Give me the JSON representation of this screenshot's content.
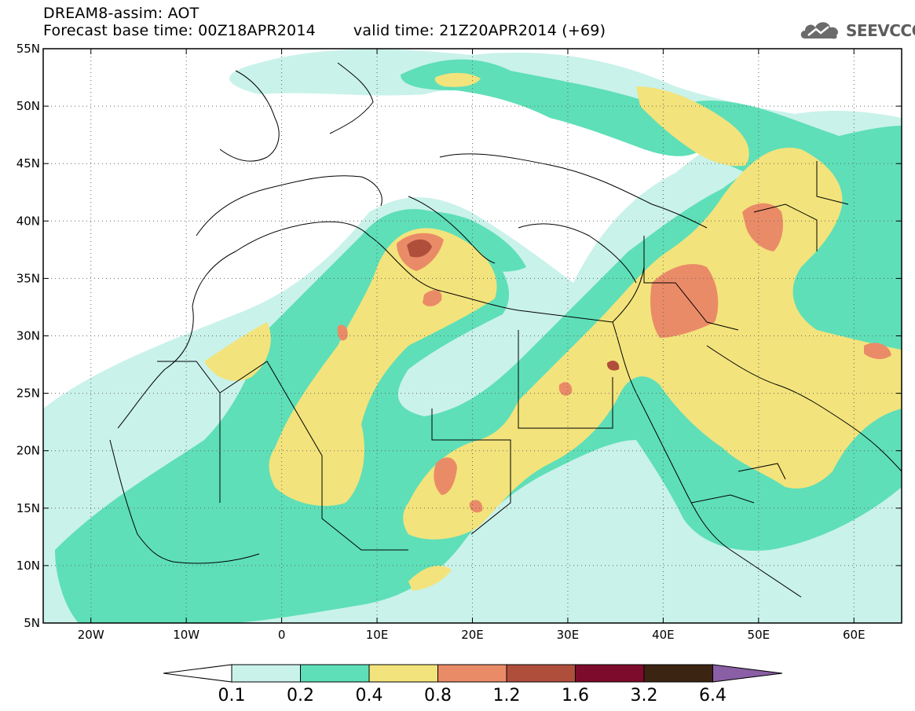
{
  "header": {
    "line1": "DREAM8-assim: AOT",
    "base_time": "Forecast base time: 00Z18APR2014",
    "valid_time": "valid time: 21Z20APR2014 (+69)"
  },
  "logo": {
    "text": "SEEVCCC",
    "icon": "cloud-icon"
  },
  "map": {
    "lat_labels": [
      "55N",
      "50N",
      "45N",
      "40N",
      "35N",
      "30N",
      "25N",
      "20N",
      "15N",
      "10N",
      "5N"
    ],
    "lon_labels": [
      "20W",
      "10W",
      "0",
      "10E",
      "20E",
      "30E",
      "40E",
      "50E",
      "60E"
    ],
    "lat_values": [
      55,
      50,
      45,
      40,
      35,
      30,
      25,
      20,
      15,
      10,
      5
    ],
    "lon_values": [
      -20,
      -10,
      0,
      10,
      20,
      30,
      40,
      50,
      60
    ],
    "lat_range": [
      5,
      55
    ],
    "lon_range": [
      -25,
      65
    ],
    "grid": true,
    "grid_style": "dotted"
  },
  "colorbar": {
    "labels": [
      "0.1",
      "0.2",
      "0.4",
      "0.8",
      "1.2",
      "1.6",
      "3.2",
      "6.4"
    ],
    "colors": [
      "#ffffff",
      "#c9f2ea",
      "#5edfb7",
      "#f3e37c",
      "#ea8b68",
      "#b04e3c",
      "#7d0b2b",
      "#3c2413",
      "#8a5fa6"
    ]
  },
  "levels": {
    "c01": "#c9f2ea",
    "c02": "#5edfb7",
    "c04": "#f3e37c",
    "c08": "#ea8b68",
    "c12": "#b04e3c"
  }
}
